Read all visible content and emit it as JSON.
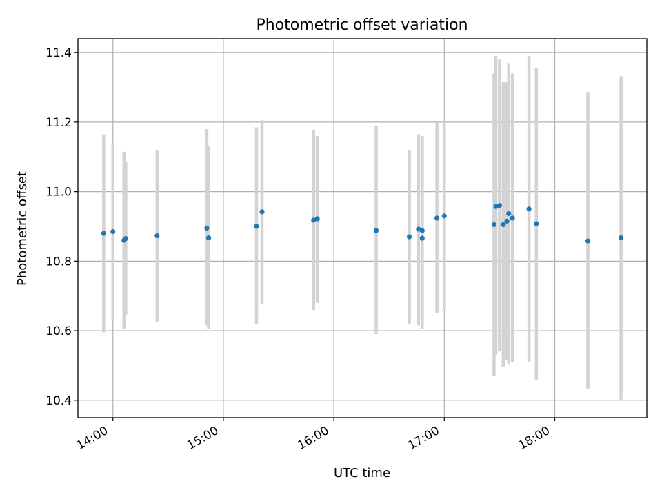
{
  "chart_data": {
    "type": "scatter",
    "title": "Photometric offset variation",
    "xlabel": "UTC time",
    "ylabel": "Photometric offset",
    "x_ticks": [
      "14:00",
      "15:00",
      "16:00",
      "17:00",
      "18:00"
    ],
    "y_ticks": [
      "10.4",
      "10.6",
      "10.8",
      "11.0",
      "11.2",
      "11.4"
    ],
    "xlim": [
      "13:41",
      "18:50"
    ],
    "ylim": [
      10.35,
      11.44
    ],
    "grid": true,
    "point_color": "#1f77b4",
    "errorbar_color": "#d3d3d3",
    "points": [
      {
        "x": "13:55",
        "y": 10.88,
        "ylo": 10.595,
        "yhi": 11.165
      },
      {
        "x": "14:00",
        "y": 10.885,
        "ylo": 10.63,
        "yhi": 11.14
      },
      {
        "x": "14:06",
        "y": 10.86,
        "ylo": 10.605,
        "yhi": 11.115
      },
      {
        "x": "14:07",
        "y": 10.865,
        "ylo": 10.645,
        "yhi": 11.085
      },
      {
        "x": "14:24",
        "y": 10.873,
        "ylo": 10.625,
        "yhi": 11.12
      },
      {
        "x": "14:51",
        "y": 10.895,
        "ylo": 10.615,
        "yhi": 11.18
      },
      {
        "x": "14:52",
        "y": 10.867,
        "ylo": 10.605,
        "yhi": 11.13
      },
      {
        "x": "15:18",
        "y": 10.9,
        "ylo": 10.62,
        "yhi": 11.185
      },
      {
        "x": "15:21",
        "y": 10.942,
        "ylo": 10.675,
        "yhi": 11.205
      },
      {
        "x": "15:49",
        "y": 10.918,
        "ylo": 10.66,
        "yhi": 11.178
      },
      {
        "x": "15:51",
        "y": 10.922,
        "ylo": 10.68,
        "yhi": 11.16
      },
      {
        "x": "16:23",
        "y": 10.888,
        "ylo": 10.59,
        "yhi": 11.19
      },
      {
        "x": "16:41",
        "y": 10.87,
        "ylo": 10.62,
        "yhi": 11.12
      },
      {
        "x": "16:46",
        "y": 10.892,
        "ylo": 10.615,
        "yhi": 11.165
      },
      {
        "x": "16:48",
        "y": 10.866,
        "ylo": 10.605,
        "yhi": 11.155
      },
      {
        "x": "16:48",
        "y": 10.888,
        "ylo": 10.62,
        "yhi": 11.16
      },
      {
        "x": "16:56",
        "y": 10.924,
        "ylo": 10.65,
        "yhi": 11.2
      },
      {
        "x": "17:00",
        "y": 10.93,
        "ylo": 10.66,
        "yhi": 11.2
      },
      {
        "x": "17:27",
        "y": 10.905,
        "ylo": 10.47,
        "yhi": 11.34
      },
      {
        "x": "17:28",
        "y": 10.957,
        "ylo": 10.53,
        "yhi": 11.39
      },
      {
        "x": "17:30",
        "y": 10.96,
        "ylo": 10.54,
        "yhi": 11.38
      },
      {
        "x": "17:32",
        "y": 10.905,
        "ylo": 10.495,
        "yhi": 11.315
      },
      {
        "x": "17:34",
        "y": 10.915,
        "ylo": 10.515,
        "yhi": 11.315
      },
      {
        "x": "17:35",
        "y": 10.937,
        "ylo": 10.505,
        "yhi": 11.37
      },
      {
        "x": "17:37",
        "y": 10.924,
        "ylo": 10.51,
        "yhi": 11.34
      },
      {
        "x": "17:46",
        "y": 10.95,
        "ylo": 10.51,
        "yhi": 11.39
      },
      {
        "x": "17:50",
        "y": 10.908,
        "ylo": 10.46,
        "yhi": 11.355
      },
      {
        "x": "18:18",
        "y": 10.858,
        "ylo": 10.432,
        "yhi": 11.285
      },
      {
        "x": "18:36",
        "y": 10.867,
        "ylo": 10.402,
        "yhi": 11.332
      }
    ]
  }
}
